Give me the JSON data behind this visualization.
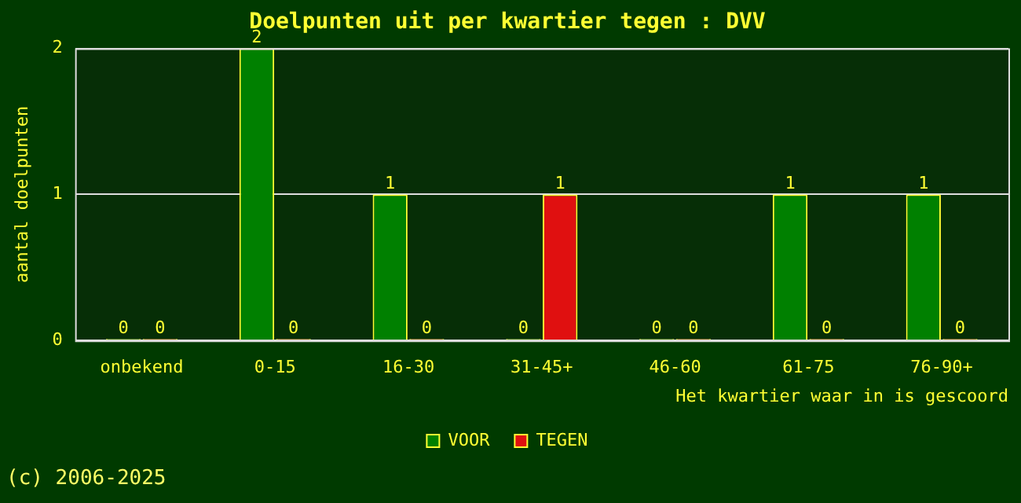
{
  "chart_data": {
    "type": "bar",
    "title": "Doelpunten uit per kwartier tegen : DVV",
    "xlabel": "Het kwartier waar in is gescoord",
    "ylabel": "aantal doelpunten",
    "categories": [
      "onbekend",
      "0-15",
      "16-30",
      "31-45+",
      "46-60",
      "61-75",
      "76-90+"
    ],
    "series": [
      {
        "name": "VOOR",
        "color": "#008000",
        "values": [
          0,
          2,
          1,
          0,
          0,
          1,
          1
        ]
      },
      {
        "name": "TEGEN",
        "color": "#e01010",
        "values": [
          0,
          0,
          0,
          1,
          0,
          0,
          0
        ]
      }
    ],
    "ylim": [
      0,
      2
    ],
    "yticks": [
      0,
      1,
      2
    ],
    "grid": "y",
    "legend": "bottom",
    "data_labels": true,
    "annotations": [
      "(c) 2006-2025"
    ]
  }
}
